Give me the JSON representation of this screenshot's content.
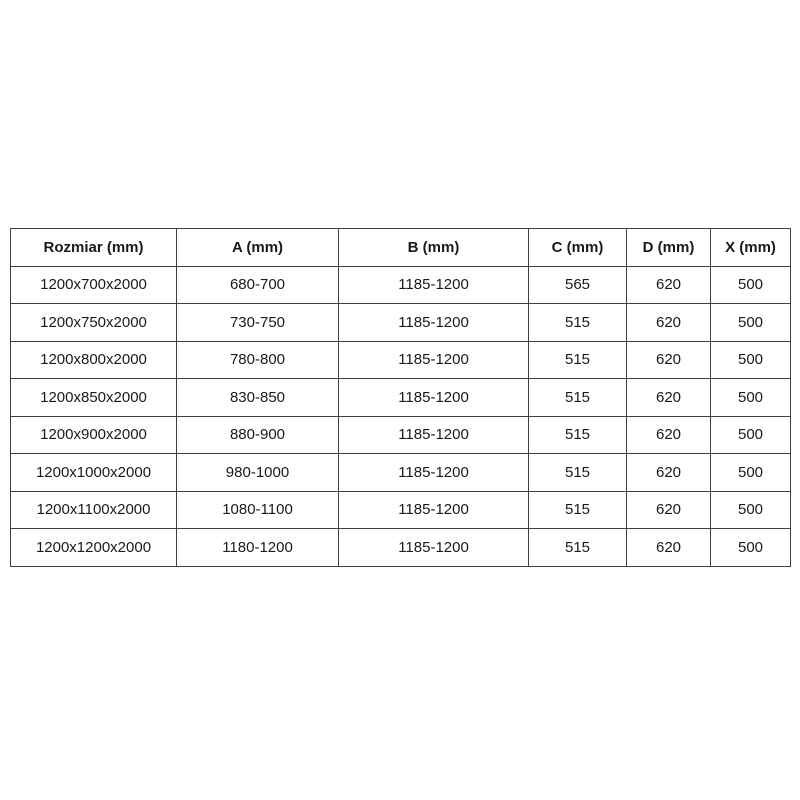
{
  "table": {
    "border_color": "#3f3f3f",
    "text_color": "#1a1a1a",
    "background_color": "#ffffff",
    "headers": [
      "Rozmiar (mm)",
      "A (mm)",
      "B (mm)",
      "C (mm)",
      "D (mm)",
      "X (mm)"
    ],
    "rows": [
      [
        "1200x700x2000",
        "680-700",
        "1185-1200",
        "565",
        "620",
        "500"
      ],
      [
        "1200x750x2000",
        "730-750",
        "1185-1200",
        "515",
        "620",
        "500"
      ],
      [
        "1200x800x2000",
        "780-800",
        "1185-1200",
        "515",
        "620",
        "500"
      ],
      [
        "1200x850x2000",
        "830-850",
        "1185-1200",
        "515",
        "620",
        "500"
      ],
      [
        "1200x900x2000",
        "880-900",
        "1185-1200",
        "515",
        "620",
        "500"
      ],
      [
        "1200x1000x2000",
        "980-1000",
        "1185-1200",
        "515",
        "620",
        "500"
      ],
      [
        "1200x1100x2000",
        "1080-1100",
        "1185-1200",
        "515",
        "620",
        "500"
      ],
      [
        "1200x1200x2000",
        "1180-1200",
        "1185-1200",
        "515",
        "620",
        "500"
      ]
    ]
  }
}
